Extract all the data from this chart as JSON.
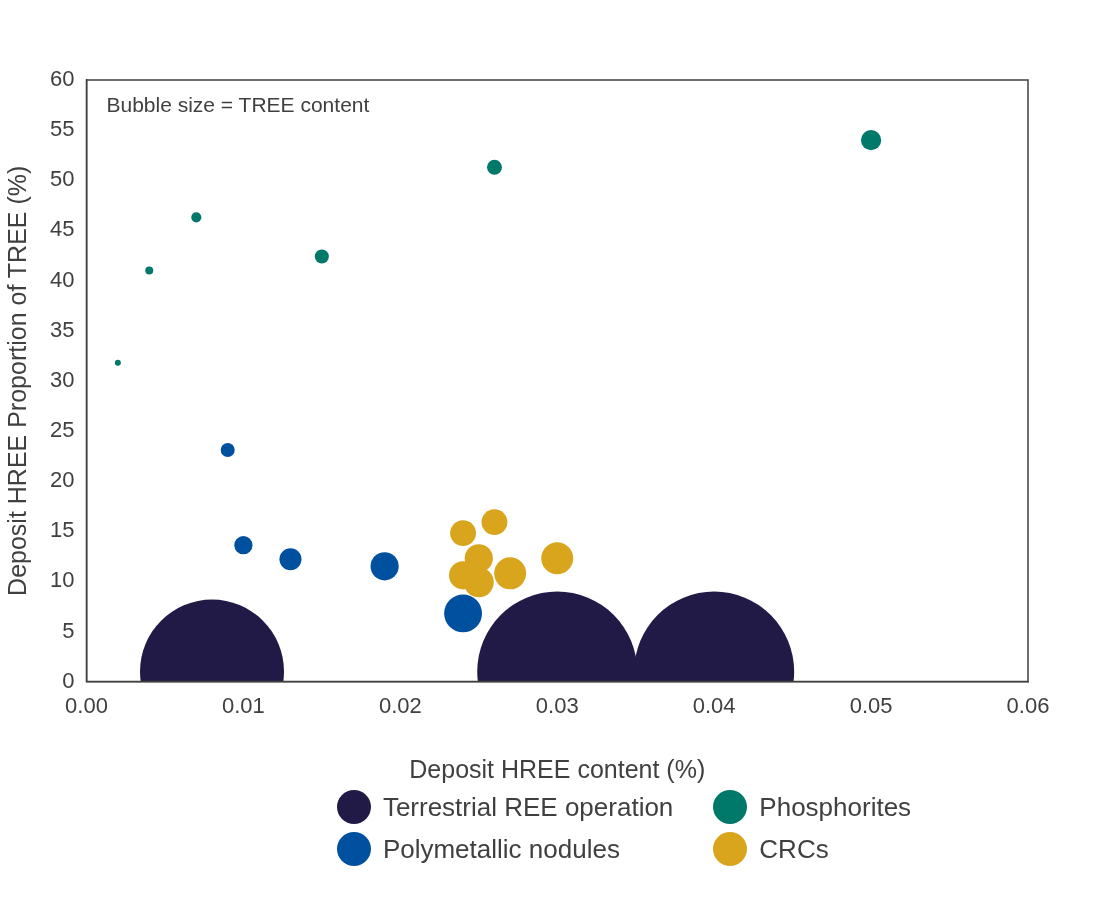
{
  "chart_data": {
    "type": "bubble",
    "xlabel": "Deposit HREE content (%)",
    "ylabel": "Deposit HREE Proportion of TREE (%)",
    "annotations": [
      "Bubble size = TREE content"
    ],
    "xlim": [
      0,
      0.06
    ],
    "xticks": [
      {
        "value": 0,
        "label": "0.00"
      },
      {
        "value": 0.01,
        "label": "0.01"
      },
      {
        "value": 0.02,
        "label": "0.02"
      },
      {
        "value": 0.03,
        "label": "0.03"
      },
      {
        "value": 0.04,
        "label": "0.04"
      },
      {
        "value": 0.05,
        "label": "0.05"
      },
      {
        "value": 0.06,
        "label": "0.06"
      }
    ],
    "ylim": [
      0,
      60
    ],
    "yticks": [
      0,
      5,
      10,
      15,
      20,
      25,
      30,
      35,
      40,
      45,
      50,
      55,
      60
    ],
    "grid": false,
    "legend": "bottom",
    "series": [
      {
        "name": "Terrestrial REE operation",
        "color": "#221a46",
        "x": [
          0.008,
          0.03,
          0.04
        ],
        "values": [
          1,
          1,
          1
        ],
        "sizes": [
          0.81,
          1,
          1
        ]
      },
      {
        "name": "Phosphorites",
        "color": "#00786a",
        "x": [
          0.002,
          0.004,
          0.007,
          0.015,
          0.026,
          0.05
        ],
        "values": [
          31.8,
          41,
          46.3,
          42.4,
          51.3,
          54
        ],
        "sizes": [
          0.0014,
          0.0025,
          0.004,
          0.0077,
          0.0088,
          0.016
        ]
      },
      {
        "name": "Polymetallic nodules",
        "color": "#0050a0",
        "x": [
          0.009,
          0.01,
          0.013,
          0.019,
          0.024
        ],
        "values": [
          23.1,
          13.6,
          12.2,
          11.5,
          6.8
        ],
        "sizes": [
          0.0077,
          0.013,
          0.019,
          0.031,
          0.056
        ]
      },
      {
        "name": "CRCs",
        "color": "#d8a51c",
        "x": [
          0.024,
          0.026,
          0.025,
          0.03,
          0.027,
          0.024,
          0.025
        ],
        "values": [
          14.8,
          15.9,
          12.3,
          12.3,
          10.8,
          10.6,
          9.9
        ],
        "sizes": [
          0.026,
          0.026,
          0.031,
          0.04,
          0.04,
          0.031,
          0.035
        ]
      }
    ]
  }
}
